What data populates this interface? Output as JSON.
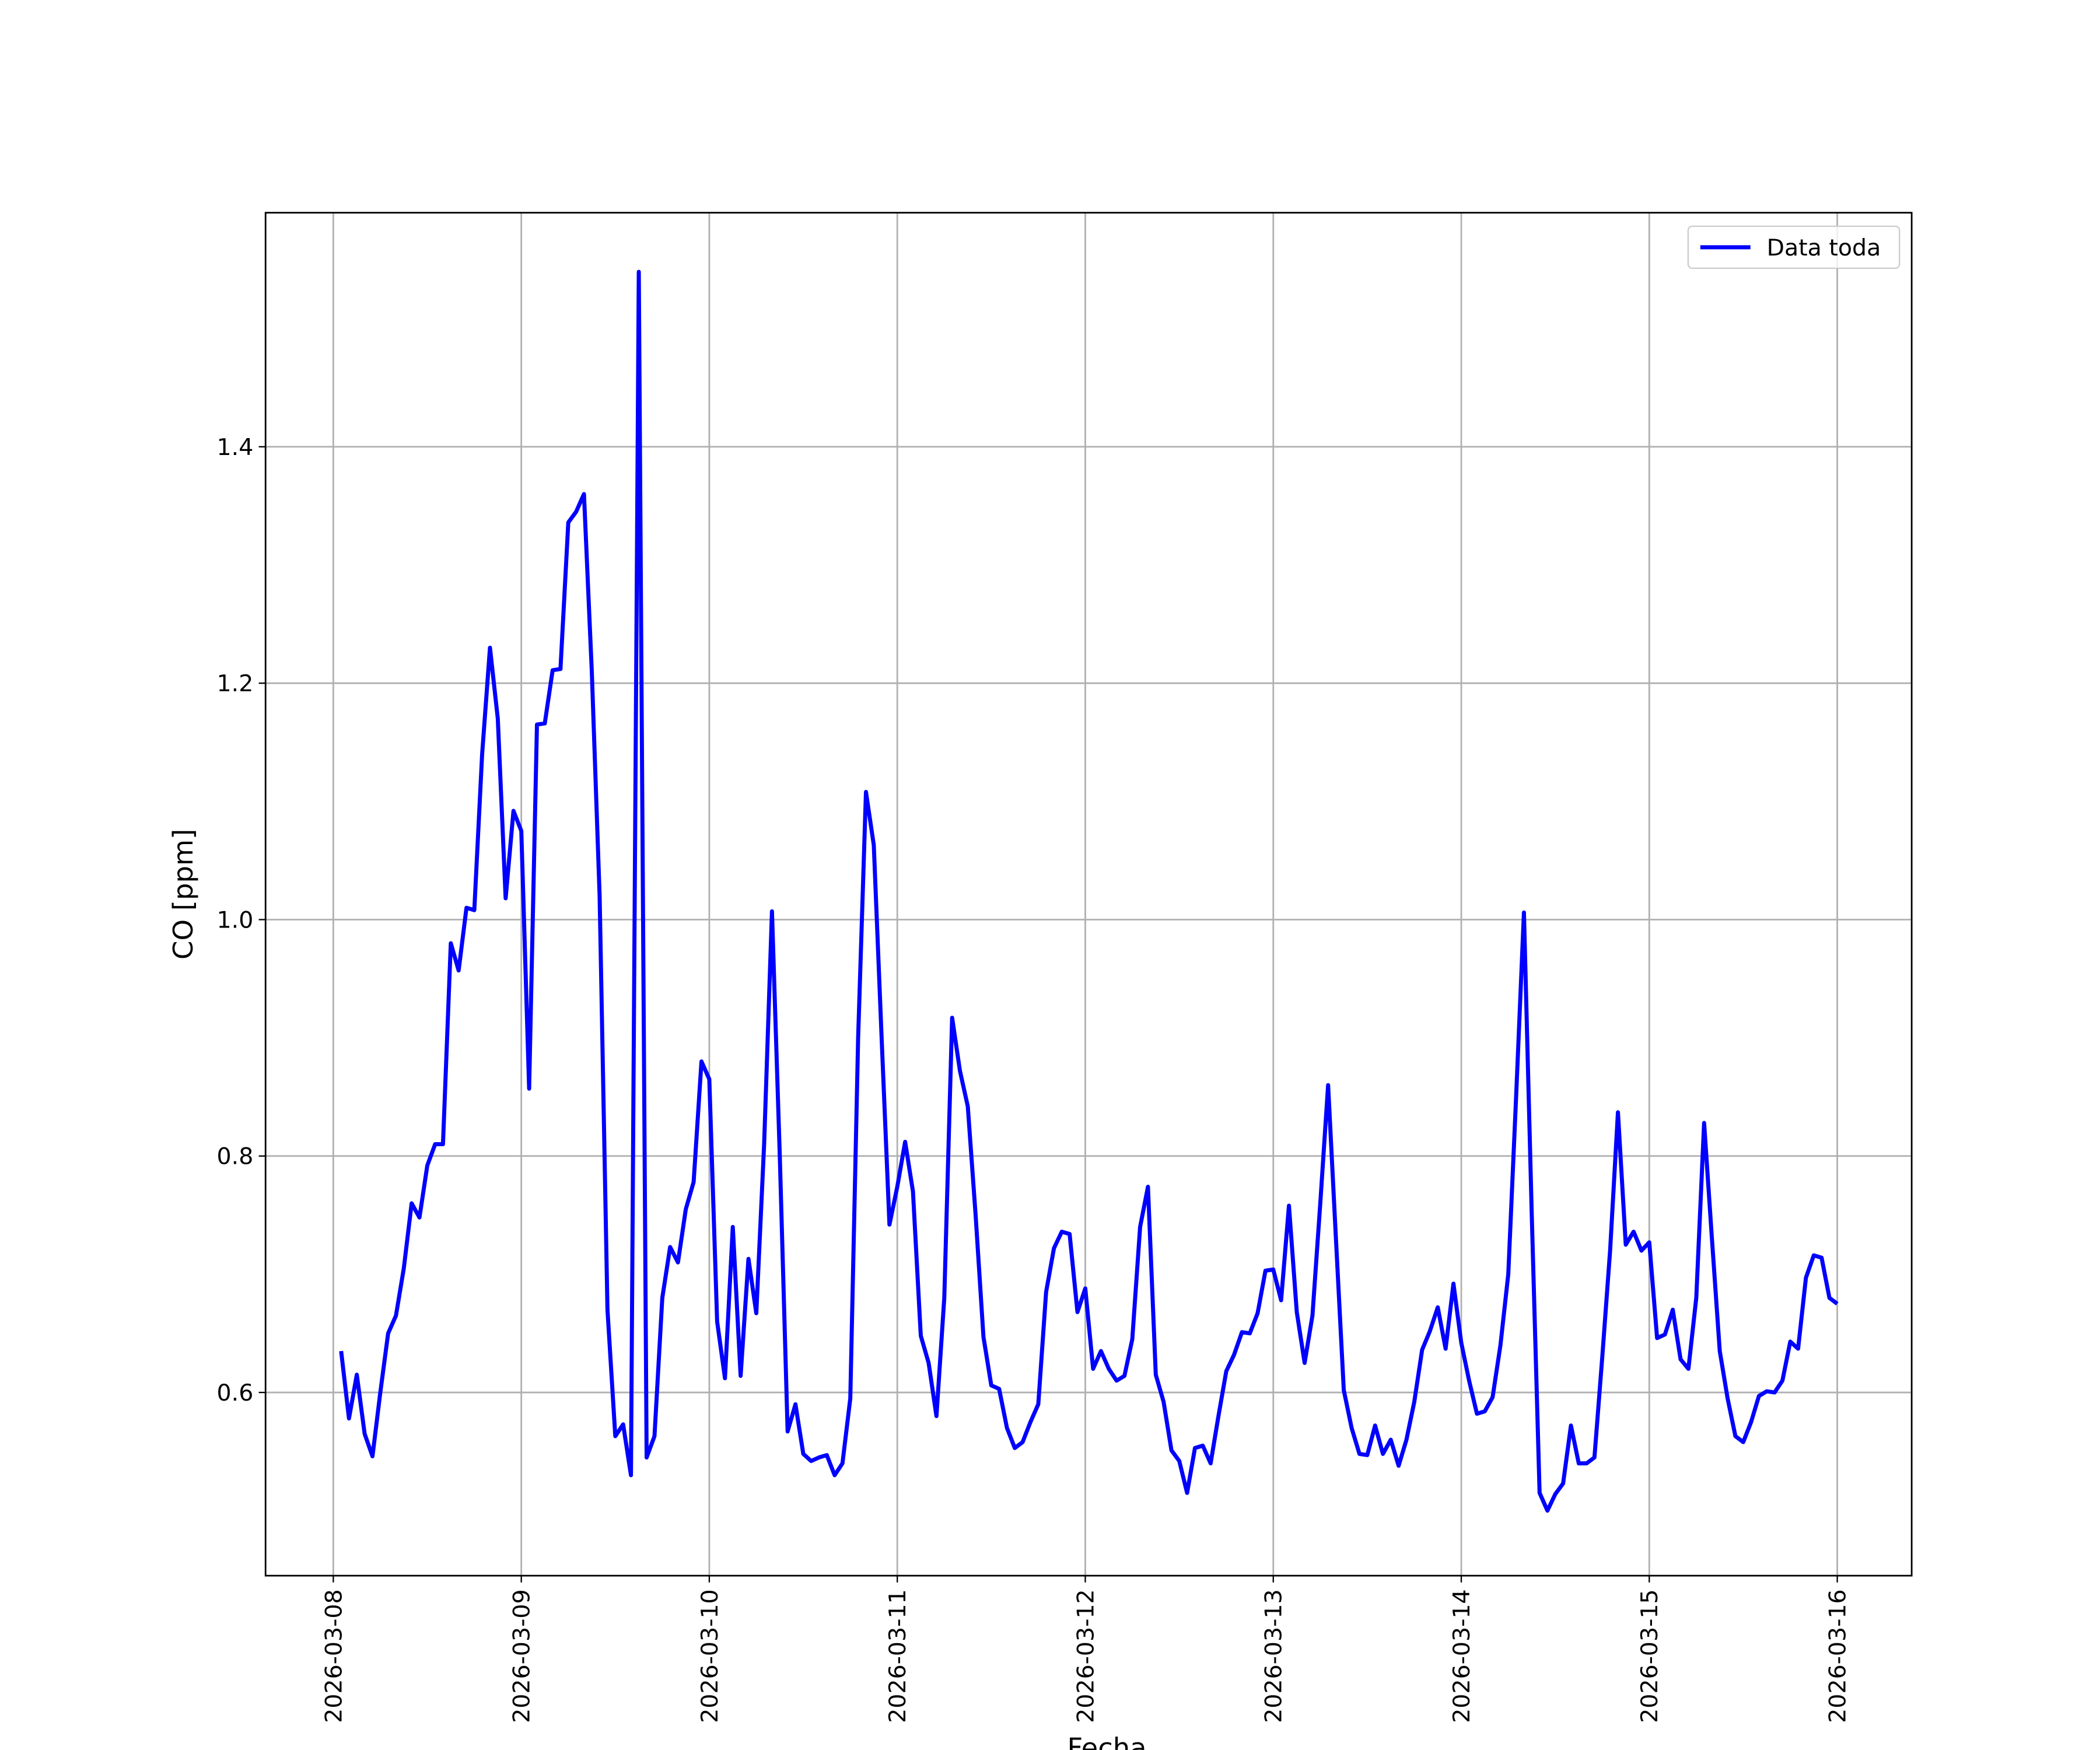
{
  "chart_data": {
    "type": "line",
    "xlabel": "Fecha",
    "ylabel": "CO [ppm]",
    "legend": "upper right",
    "grid": true,
    "x": [
      "2026-03-08T01:00",
      "2026-03-08T02:00",
      "2026-03-08T03:00",
      "2026-03-08T04:00",
      "2026-03-08T05:00",
      "2026-03-08T06:00",
      "2026-03-08T07:00",
      "2026-03-08T08:00",
      "2026-03-08T09:00",
      "2026-03-08T10:00",
      "2026-03-08T11:00",
      "2026-03-08T12:00",
      "2026-03-08T13:00",
      "2026-03-08T14:00",
      "2026-03-08T15:00",
      "2026-03-08T16:00",
      "2026-03-08T17:00",
      "2026-03-08T18:00",
      "2026-03-08T19:00",
      "2026-03-08T20:00",
      "2026-03-08T21:00",
      "2026-03-08T22:00",
      "2026-03-08T23:00",
      "2026-03-09T00:00",
      "2026-03-09T01:00",
      "2026-03-09T02:00",
      "2026-03-09T03:00",
      "2026-03-09T04:00",
      "2026-03-09T05:00",
      "2026-03-09T06:00",
      "2026-03-09T07:00",
      "2026-03-09T08:00",
      "2026-03-09T09:00",
      "2026-03-09T10:00",
      "2026-03-09T11:00",
      "2026-03-09T12:00",
      "2026-03-09T13:00",
      "2026-03-09T14:00",
      "2026-03-09T15:00",
      "2026-03-09T16:00",
      "2026-03-09T17:00",
      "2026-03-09T18:00",
      "2026-03-09T19:00",
      "2026-03-09T20:00",
      "2026-03-09T21:00",
      "2026-03-09T22:00",
      "2026-03-09T23:00",
      "2026-03-10T00:00",
      "2026-03-10T01:00",
      "2026-03-10T02:00",
      "2026-03-10T03:00",
      "2026-03-10T04:00",
      "2026-03-10T05:00",
      "2026-03-10T06:00",
      "2026-03-10T07:00",
      "2026-03-10T08:00",
      "2026-03-10T09:00",
      "2026-03-10T10:00",
      "2026-03-10T11:00",
      "2026-03-10T12:00",
      "2026-03-10T13:00",
      "2026-03-10T14:00",
      "2026-03-10T15:00",
      "2026-03-10T16:00",
      "2026-03-10T17:00",
      "2026-03-10T18:00",
      "2026-03-10T19:00",
      "2026-03-10T20:00",
      "2026-03-10T21:00",
      "2026-03-10T22:00",
      "2026-03-10T23:00",
      "2026-03-11T00:00",
      "2026-03-11T01:00",
      "2026-03-11T02:00",
      "2026-03-11T03:00",
      "2026-03-11T04:00",
      "2026-03-11T05:00",
      "2026-03-11T06:00",
      "2026-03-11T07:00",
      "2026-03-11T08:00",
      "2026-03-11T09:00",
      "2026-03-11T10:00",
      "2026-03-11T11:00",
      "2026-03-11T12:00",
      "2026-03-11T13:00",
      "2026-03-11T14:00",
      "2026-03-11T15:00",
      "2026-03-11T16:00",
      "2026-03-11T17:00",
      "2026-03-11T18:00",
      "2026-03-11T19:00",
      "2026-03-11T20:00",
      "2026-03-11T21:00",
      "2026-03-11T22:00",
      "2026-03-11T23:00",
      "2026-03-12T00:00",
      "2026-03-12T01:00",
      "2026-03-12T02:00",
      "2026-03-12T03:00",
      "2026-03-12T04:00",
      "2026-03-12T05:00",
      "2026-03-12T06:00",
      "2026-03-12T07:00",
      "2026-03-12T08:00",
      "2026-03-12T09:00",
      "2026-03-12T10:00",
      "2026-03-12T11:00",
      "2026-03-12T12:00",
      "2026-03-12T13:00",
      "2026-03-12T14:00",
      "2026-03-12T15:00",
      "2026-03-12T16:00",
      "2026-03-12T17:00",
      "2026-03-12T18:00",
      "2026-03-12T19:00",
      "2026-03-12T20:00",
      "2026-03-12T21:00",
      "2026-03-12T22:00",
      "2026-03-12T23:00",
      "2026-03-13T00:00",
      "2026-03-13T01:00",
      "2026-03-13T02:00",
      "2026-03-13T03:00",
      "2026-03-13T04:00",
      "2026-03-13T05:00",
      "2026-03-13T06:00",
      "2026-03-13T07:00",
      "2026-03-13T08:00",
      "2026-03-13T09:00",
      "2026-03-13T10:00",
      "2026-03-13T11:00",
      "2026-03-13T12:00",
      "2026-03-13T13:00",
      "2026-03-13T14:00",
      "2026-03-13T15:00",
      "2026-03-13T16:00",
      "2026-03-13T17:00",
      "2026-03-13T18:00",
      "2026-03-13T19:00",
      "2026-03-13T20:00",
      "2026-03-13T21:00",
      "2026-03-13T22:00",
      "2026-03-13T23:00",
      "2026-03-14T00:00",
      "2026-03-14T01:00",
      "2026-03-14T02:00",
      "2026-03-14T03:00",
      "2026-03-14T04:00",
      "2026-03-14T05:00",
      "2026-03-14T06:00",
      "2026-03-14T07:00",
      "2026-03-14T08:00",
      "2026-03-14T09:00",
      "2026-03-14T10:00",
      "2026-03-14T11:00",
      "2026-03-14T12:00",
      "2026-03-14T13:00",
      "2026-03-14T14:00",
      "2026-03-14T15:00",
      "2026-03-14T16:00",
      "2026-03-14T17:00",
      "2026-03-14T18:00",
      "2026-03-14T19:00",
      "2026-03-14T20:00",
      "2026-03-14T21:00",
      "2026-03-14T22:00",
      "2026-03-14T23:00",
      "2026-03-15T00:00",
      "2026-03-15T01:00",
      "2026-03-15T02:00",
      "2026-03-15T03:00",
      "2026-03-15T04:00",
      "2026-03-15T05:00",
      "2026-03-15T06:00",
      "2026-03-15T07:00",
      "2026-03-15T08:00",
      "2026-03-15T09:00",
      "2026-03-15T10:00",
      "2026-03-15T11:00",
      "2026-03-15T12:00",
      "2026-03-15T13:00",
      "2026-03-15T14:00",
      "2026-03-15T15:00",
      "2026-03-15T16:00",
      "2026-03-15T17:00",
      "2026-03-15T18:00",
      "2026-03-15T19:00",
      "2026-03-15T20:00",
      "2026-03-15T21:00",
      "2026-03-15T22:00",
      "2026-03-15T23:00",
      "2026-03-16T00:00"
    ],
    "series": [
      {
        "name": "Data toda",
        "color": "#0000ff",
        "values": [
          0.635,
          0.578,
          0.615,
          0.565,
          0.546,
          0.6,
          0.65,
          0.665,
          0.705,
          0.76,
          0.748,
          0.792,
          0.81,
          0.81,
          0.98,
          0.957,
          1.01,
          1.008,
          1.14,
          1.23,
          1.17,
          1.018,
          1.092,
          1.075,
          0.857,
          1.165,
          1.166,
          1.211,
          1.212,
          1.336,
          1.345,
          1.36,
          1.21,
          1.02,
          0.67,
          0.563,
          0.573,
          0.53,
          1.548,
          0.545,
          0.563,
          0.68,
          0.723,
          0.71,
          0.755,
          0.778,
          0.88,
          0.865,
          0.66,
          0.612,
          0.74,
          0.614,
          0.713,
          0.667,
          0.81,
          1.007,
          0.8,
          0.567,
          0.59,
          0.548,
          0.542,
          0.545,
          0.547,
          0.53,
          0.54,
          0.595,
          0.9,
          1.108,
          1.063,
          0.9,
          0.742,
          0.774,
          0.812,
          0.77,
          0.648,
          0.625,
          0.58,
          0.68,
          0.917,
          0.872,
          0.842,
          0.75,
          0.647,
          0.606,
          0.603,
          0.57,
          0.553,
          0.558,
          0.575,
          0.59,
          0.685,
          0.722,
          0.736,
          0.734,
          0.668,
          0.688,
          0.62,
          0.635,
          0.62,
          0.61,
          0.614,
          0.645,
          0.74,
          0.774,
          0.615,
          0.592,
          0.551,
          0.542,
          0.515,
          0.553,
          0.555,
          0.54,
          0.58,
          0.618,
          0.632,
          0.651,
          0.65,
          0.667,
          0.703,
          0.704,
          0.678,
          0.758,
          0.668,
          0.625,
          0.665,
          0.76,
          0.86,
          0.73,
          0.602,
          0.57,
          0.548,
          0.547,
          0.572,
          0.548,
          0.56,
          0.538,
          0.56,
          0.592,
          0.636,
          0.652,
          0.672,
          0.637,
          0.692,
          0.642,
          0.61,
          0.582,
          0.584,
          0.596,
          0.64,
          0.7,
          0.85,
          1.006,
          0.75,
          0.515,
          0.5,
          0.514,
          0.523,
          0.572,
          0.54,
          0.54,
          0.545,
          0.63,
          0.72,
          0.837,
          0.725,
          0.736,
          0.72,
          0.727,
          0.646,
          0.649,
          0.67,
          0.628,
          0.62,
          0.68,
          0.828,
          0.73,
          0.635,
          0.595,
          0.563,
          0.558,
          0.575,
          0.597,
          0.601,
          0.6,
          0.61,
          0.643,
          0.637,
          0.697,
          0.716,
          0.714,
          0.68,
          0.675
        ]
      }
    ],
    "xlim": [
      "2026-03-07T15:21",
      "2026-03-16T09:30"
    ],
    "xticks": [
      "2026-03-08",
      "2026-03-09",
      "2026-03-10",
      "2026-03-11",
      "2026-03-12",
      "2026-03-13",
      "2026-03-14",
      "2026-03-15",
      "2026-03-16"
    ],
    "ylim": [
      0.445,
      1.598
    ],
    "yticks": [
      0.6,
      0.8,
      {
        "value": 1,
        "label": "1.0"
      },
      1.2,
      1.4
    ]
  }
}
